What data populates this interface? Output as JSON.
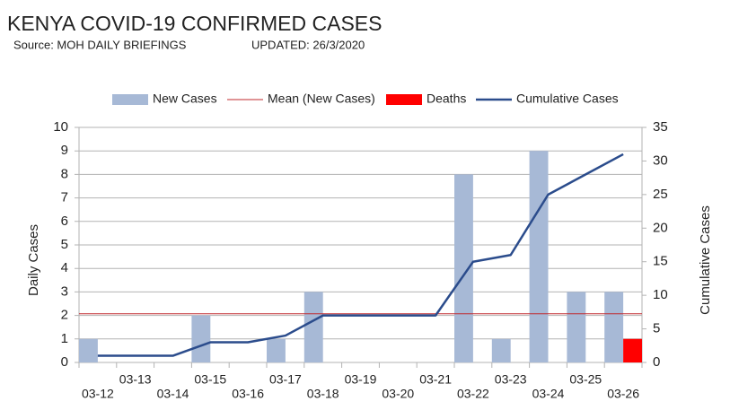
{
  "chart_data": {
    "type": "bar",
    "title": "KENYA COVID-19 CONFIRMED CASES",
    "subtitle": "Source: MOH DAILY BRIEFINGS",
    "updated": "UPDATED: 26/3/2020",
    "y_label": "Daily Cases",
    "y2_label": "Cumulative Cases",
    "categories": [
      "03-12",
      "03-13",
      "03-14",
      "03-15",
      "03-16",
      "03-17",
      "03-18",
      "03-19",
      "03-20",
      "03-21",
      "03-22",
      "03-23",
      "03-24",
      "03-25",
      "03-26"
    ],
    "series": [
      {
        "name": "New Cases",
        "type": "bar",
        "color": "#a7b9d6",
        "values": [
          1,
          0,
          0,
          2,
          0,
          1,
          3,
          0,
          0,
          0,
          8,
          1,
          9,
          3,
          3
        ]
      },
      {
        "name": "Mean (New Cases)",
        "type": "hline",
        "color": "#c0282d",
        "value": 2.07
      },
      {
        "name": "Deaths",
        "type": "bar",
        "color": "#ff0000",
        "values": [
          0,
          0,
          0,
          0,
          0,
          0,
          0,
          0,
          0,
          0,
          0,
          0,
          0,
          0,
          1
        ]
      },
      {
        "name": "Cumulative Cases",
        "type": "line",
        "axis": "y2",
        "color": "#2b4c8c",
        "values": [
          1,
          1,
          1,
          3,
          3,
          4,
          7,
          7,
          7,
          7,
          15,
          16,
          25,
          28,
          31
        ]
      }
    ],
    "ylim": [
      0,
      10
    ],
    "yticks": [
      0,
      1,
      2,
      3,
      4,
      5,
      6,
      7,
      8,
      9,
      10
    ],
    "y2lim": [
      0,
      35
    ],
    "y2ticks": [
      0,
      5,
      10,
      15,
      20,
      25,
      30,
      35
    ],
    "grid": true,
    "legend": "top"
  }
}
